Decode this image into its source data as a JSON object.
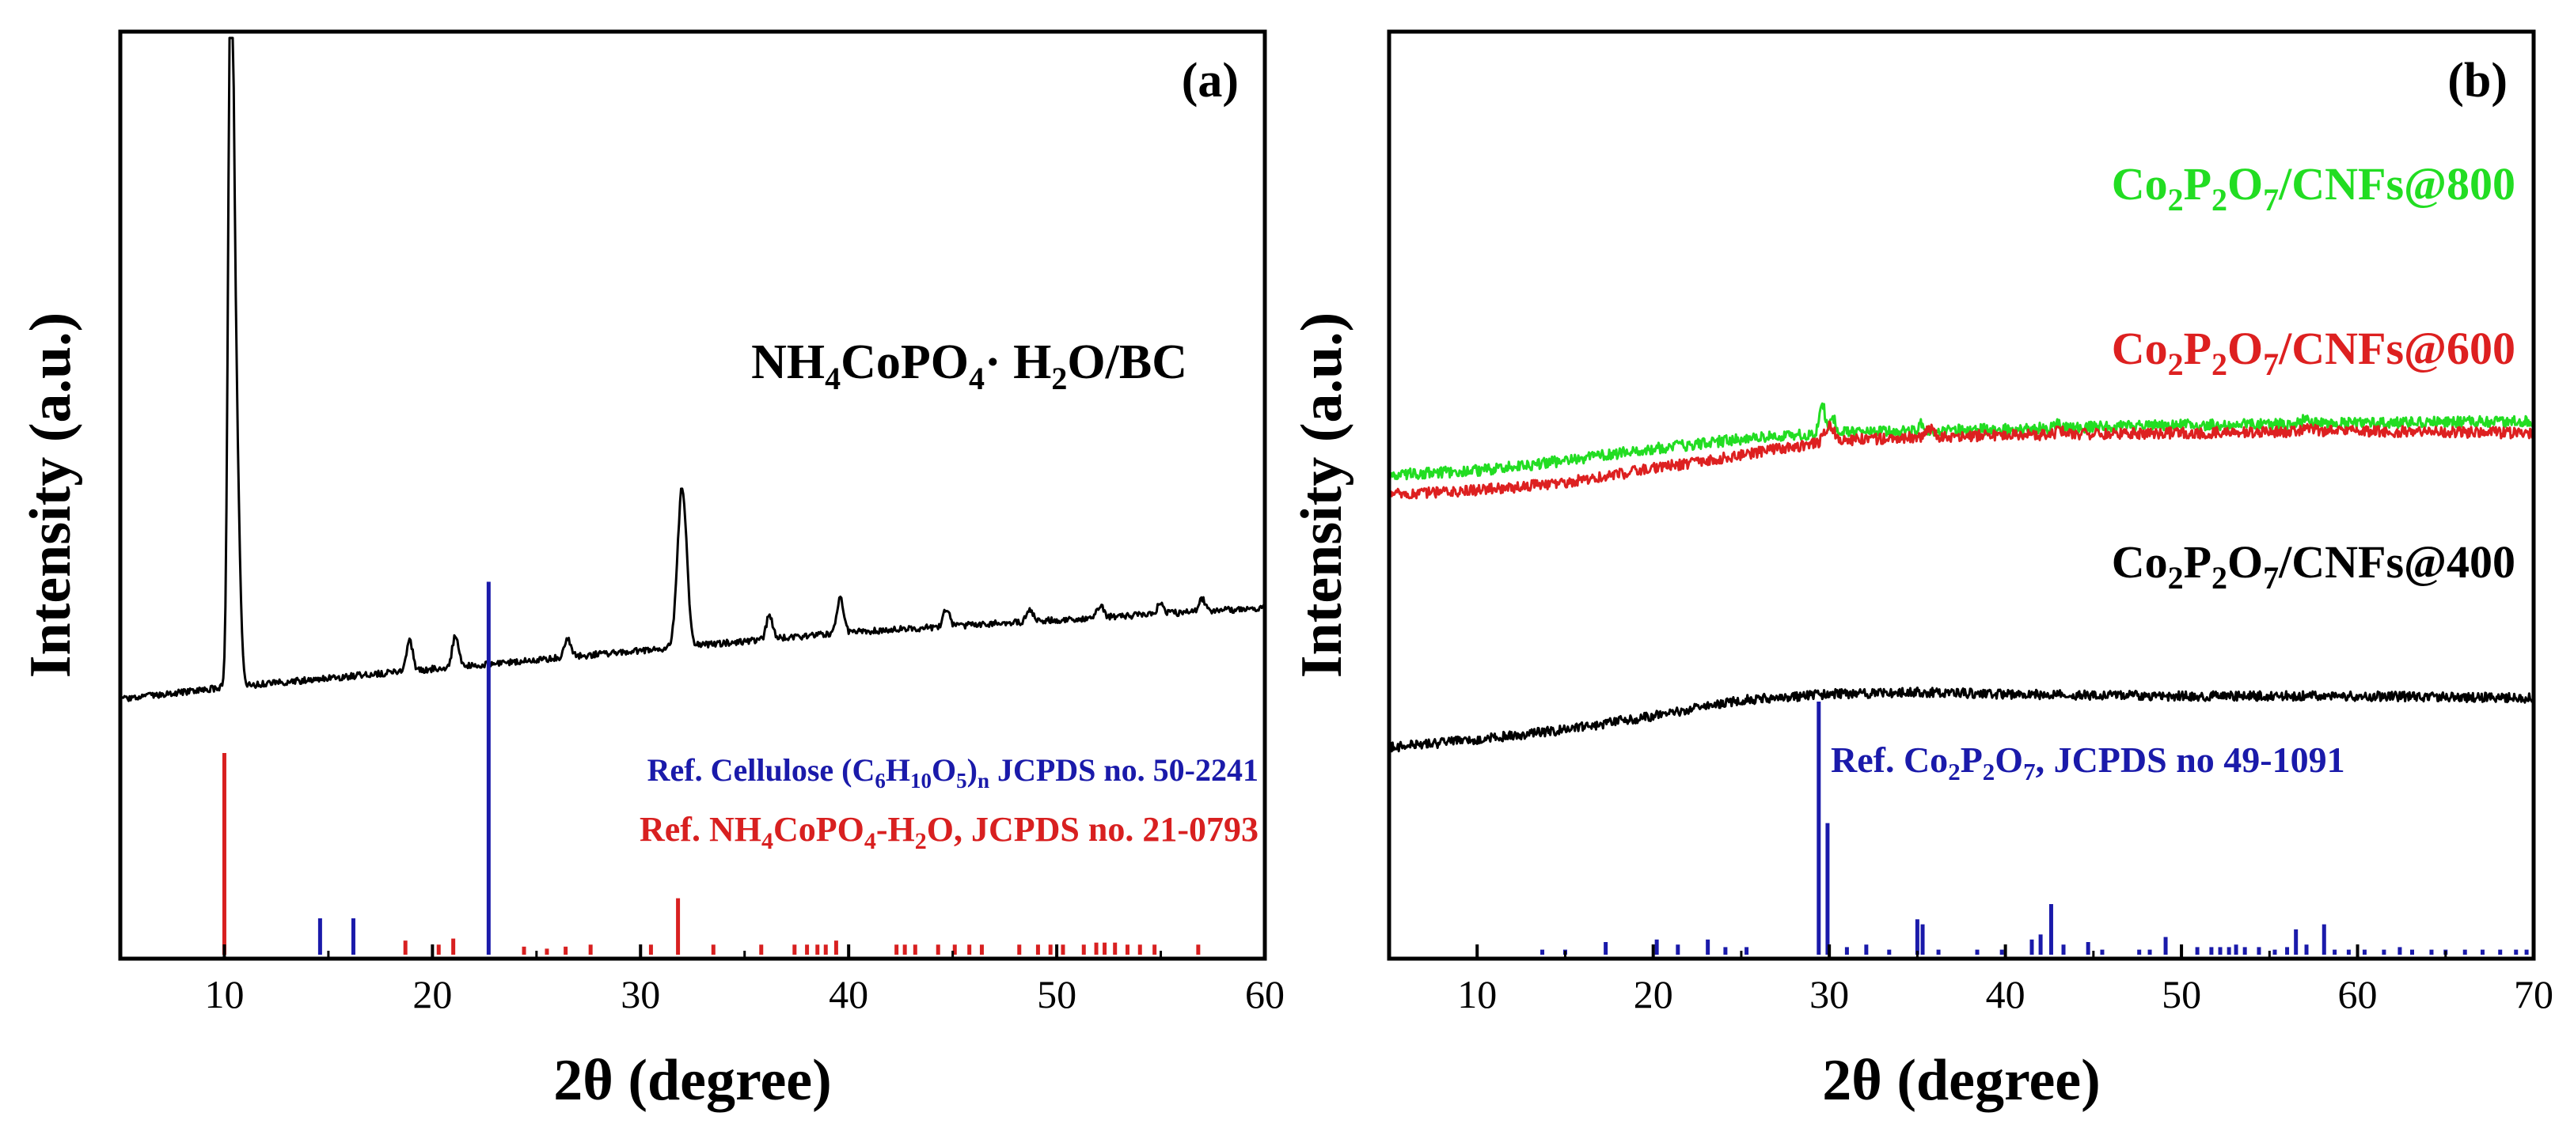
{
  "chart_data": [
    {
      "type": "line",
      "panel_label": "(a)",
      "xlabel": "2θ (degree)",
      "ylabel": "Intensity (a.u.)",
      "xlim": [
        5,
        60
      ],
      "xticks": [
        "10",
        "20",
        "30",
        "40",
        "50",
        "60"
      ],
      "yticks_shown": false,
      "series": [
        {
          "name": "NH4CoPO4·H2O/BC",
          "color": "#000000",
          "baseline": [
            [
              5,
              0.02
            ],
            [
              10,
              0.04
            ],
            [
              20,
              0.07
            ],
            [
              30,
              0.1
            ],
            [
              40,
              0.13
            ],
            [
              50,
              0.15
            ],
            [
              60,
              0.17
            ]
          ],
          "peaks": [
            [
              10.3,
              0.98,
              0.12
            ],
            [
              10.5,
              0.55,
              0.18
            ],
            [
              18.9,
              0.05,
              0.15
            ],
            [
              21.1,
              0.05,
              0.15
            ],
            [
              26.5,
              0.03,
              0.15
            ],
            [
              32.0,
              0.26,
              0.22
            ],
            [
              36.2,
              0.04,
              0.15
            ],
            [
              39.6,
              0.06,
              0.15
            ],
            [
              44.7,
              0.03,
              0.15
            ],
            [
              48.7,
              0.02,
              0.15
            ],
            [
              52.1,
              0.02,
              0.15
            ],
            [
              55.0,
              0.02,
              0.15
            ],
            [
              57.0,
              0.02,
              0.15
            ]
          ]
        }
      ],
      "references": [
        {
          "name": "Ref. Cellulose (C6H10O5)n JCPDS no. 50-2241",
          "color": "#1a1aaa",
          "sticks": [
            [
              14.6,
              0.08
            ],
            [
              16.2,
              0.08
            ],
            [
              22.7,
              0.82
            ]
          ]
        },
        {
          "name": "Ref. NH4CoPO4-H2O, JCPDS no. 21-0793",
          "color": "#d82020",
          "sticks": [
            [
              10.0,
              1.0
            ],
            [
              18.7,
              0.07
            ],
            [
              20.3,
              0.05
            ],
            [
              21.0,
              0.08
            ],
            [
              24.4,
              0.04
            ],
            [
              25.5,
              0.03
            ],
            [
              26.4,
              0.04
            ],
            [
              27.6,
              0.05
            ],
            [
              30.5,
              0.05
            ],
            [
              31.8,
              0.28
            ],
            [
              33.5,
              0.05
            ],
            [
              35.8,
              0.05
            ],
            [
              37.4,
              0.05
            ],
            [
              38.0,
              0.05
            ],
            [
              38.5,
              0.05
            ],
            [
              38.9,
              0.05
            ],
            [
              39.4,
              0.07
            ],
            [
              42.3,
              0.05
            ],
            [
              42.7,
              0.05
            ],
            [
              43.2,
              0.05
            ],
            [
              44.3,
              0.05
            ],
            [
              45.1,
              0.05
            ],
            [
              45.8,
              0.05
            ],
            [
              46.4,
              0.05
            ],
            [
              48.2,
              0.05
            ],
            [
              49.1,
              0.05
            ],
            [
              49.7,
              0.05
            ],
            [
              50.3,
              0.05
            ],
            [
              51.3,
              0.05
            ],
            [
              51.9,
              0.06
            ],
            [
              52.3,
              0.06
            ],
            [
              52.8,
              0.06
            ],
            [
              53.4,
              0.05
            ],
            [
              54.0,
              0.05
            ],
            [
              54.7,
              0.05
            ],
            [
              56.8,
              0.05
            ]
          ]
        }
      ],
      "labels": {
        "sample": {
          "main1": "NH",
          "sub1": "4",
          "main2": "CoPO",
          "sub2": "4",
          "main3": "· H",
          "sub3": "2",
          "main4": "O/BC"
        },
        "ref_cellulose": {
          "main1": "Ref. Cellulose (C",
          "sub1": "6",
          "main2": "H",
          "sub2": "10",
          "main3": "O",
          "sub3": "5",
          "main4": ")",
          "sub4": "n",
          "main5": " JCPDS no. 50-2241"
        },
        "ref_nh4": {
          "main1": "Ref. NH",
          "sub1": "4",
          "main2": "CoPO",
          "sub2": "4",
          "main3": "-H",
          "sub3": "2",
          "main4": "O, JCPDS no. 21-0793"
        }
      }
    },
    {
      "type": "line",
      "panel_label": "(b)",
      "xlabel": "2θ (degree)",
      "ylabel": "Intensity (a.u.)",
      "xlim": [
        5,
        70
      ],
      "xticks": [
        "10",
        "20",
        "30",
        "40",
        "50",
        "60",
        "70"
      ],
      "yticks_shown": false,
      "series": [
        {
          "name": "Co2P2O7/CNFs@800",
          "color": "#22dd22",
          "baseline": [
            [
              5,
              0.2
            ],
            [
              10,
              0.22
            ],
            [
              15,
              0.27
            ],
            [
              20,
              0.33
            ],
            [
              25,
              0.38
            ],
            [
              30,
              0.41
            ],
            [
              40,
              0.43
            ],
            [
              50,
              0.45
            ],
            [
              60,
              0.46
            ],
            [
              70,
              0.47
            ]
          ],
          "peaks": [
            [
              29.6,
              0.16,
              0.15
            ],
            [
              30.2,
              0.08,
              0.15
            ],
            [
              35.3,
              0.04,
              0.15
            ],
            [
              42.9,
              0.02,
              0.15
            ],
            [
              57.0,
              0.02,
              0.2
            ]
          ]
        },
        {
          "name": "Co2P2O7/CNFs@600",
          "color": "#dd2020",
          "baseline": [
            [
              5,
              -0.1
            ],
            [
              10,
              -0.08
            ],
            [
              15,
              -0.04
            ],
            [
              20,
              0.03
            ],
            [
              25,
              0.1
            ],
            [
              28,
              0.14
            ],
            [
              30,
              0.17
            ],
            [
              35,
              0.19
            ],
            [
              40,
              0.2
            ],
            [
              50,
              0.21
            ],
            [
              60,
              0.22
            ],
            [
              70,
              0.21
            ]
          ],
          "peaks": [
            [
              30.0,
              0.08,
              0.25
            ],
            [
              35.7,
              0.04,
              0.2
            ],
            [
              43.2,
              0.02,
              0.3
            ],
            [
              57.2,
              0.02,
              0.3
            ]
          ]
        },
        {
          "name": "Co2P2O7/CNFs@400",
          "color": "#000000",
          "baseline": [
            [
              5,
              -0.5
            ],
            [
              10,
              -0.46
            ],
            [
              15,
              -0.41
            ],
            [
              20,
              -0.34
            ],
            [
              25,
              -0.26
            ],
            [
              30,
              -0.23
            ],
            [
              35,
              -0.22
            ],
            [
              40,
              -0.23
            ],
            [
              50,
              -0.24
            ],
            [
              60,
              -0.24
            ],
            [
              70,
              -0.25
            ]
          ],
          "peaks": []
        }
      ],
      "references": [
        {
          "name": "Ref. Co2P2O7, JCPDS no 49-1091",
          "color": "#1a1aaa",
          "sticks": [
            [
              13.7,
              0.02
            ],
            [
              15.0,
              0.02
            ],
            [
              17.3,
              0.05
            ],
            [
              20.2,
              0.06
            ],
            [
              21.4,
              0.04
            ],
            [
              23.1,
              0.06
            ],
            [
              24.1,
              0.03
            ],
            [
              25.3,
              0.03
            ],
            [
              29.4,
              1.0
            ],
            [
              29.9,
              0.52
            ],
            [
              31.0,
              0.03
            ],
            [
              32.1,
              0.04
            ],
            [
              33.4,
              0.02
            ],
            [
              35.0,
              0.14
            ],
            [
              35.3,
              0.12
            ],
            [
              36.2,
              0.02
            ],
            [
              38.4,
              0.02
            ],
            [
              39.8,
              0.02
            ],
            [
              41.5,
              0.06
            ],
            [
              42.0,
              0.08
            ],
            [
              42.6,
              0.2
            ],
            [
              43.3,
              0.04
            ],
            [
              44.7,
              0.05
            ],
            [
              45.5,
              0.02
            ],
            [
              47.6,
              0.02
            ],
            [
              48.2,
              0.02
            ],
            [
              49.1,
              0.07
            ],
            [
              50.9,
              0.03
            ],
            [
              51.7,
              0.03
            ],
            [
              52.2,
              0.03
            ],
            [
              52.7,
              0.03
            ],
            [
              53.1,
              0.04
            ],
            [
              53.6,
              0.03
            ],
            [
              54.4,
              0.03
            ],
            [
              55.3,
              0.02
            ],
            [
              56.0,
              0.03
            ],
            [
              56.5,
              0.1
            ],
            [
              57.1,
              0.04
            ],
            [
              58.1,
              0.12
            ],
            [
              58.7,
              0.02
            ],
            [
              59.5,
              0.02
            ],
            [
              60.4,
              0.02
            ],
            [
              61.5,
              0.02
            ],
            [
              62.4,
              0.03
            ],
            [
              63.1,
              0.02
            ],
            [
              64.2,
              0.02
            ],
            [
              65.0,
              0.02
            ],
            [
              66.1,
              0.02
            ],
            [
              67.1,
              0.02
            ],
            [
              68.1,
              0.02
            ],
            [
              69.0,
              0.02
            ],
            [
              69.6,
              0.02
            ]
          ]
        }
      ],
      "labels": {
        "s800": {
          "main1": "Co",
          "sub1": "2",
          "main2": "P",
          "sub2": "2",
          "main3": "O",
          "sub3": "7",
          "main4": "/CNFs@800"
        },
        "s600": {
          "main1": "Co",
          "sub1": "2",
          "main2": "P",
          "sub2": "2",
          "main3": "O",
          "sub3": "7",
          "main4": "/CNFs@600"
        },
        "s400": {
          "main1": "Co",
          "sub1": "2",
          "main2": "P",
          "sub2": "2",
          "main3": "O",
          "sub3": "7",
          "main4": "/CNFs@400"
        },
        "ref_co": {
          "main1": "Ref. Co",
          "sub1": "2",
          "main2": "P",
          "sub2": "2",
          "main3": "O",
          "sub3": "7",
          "main4": ", JCPDS no 49-1091"
        }
      }
    }
  ]
}
